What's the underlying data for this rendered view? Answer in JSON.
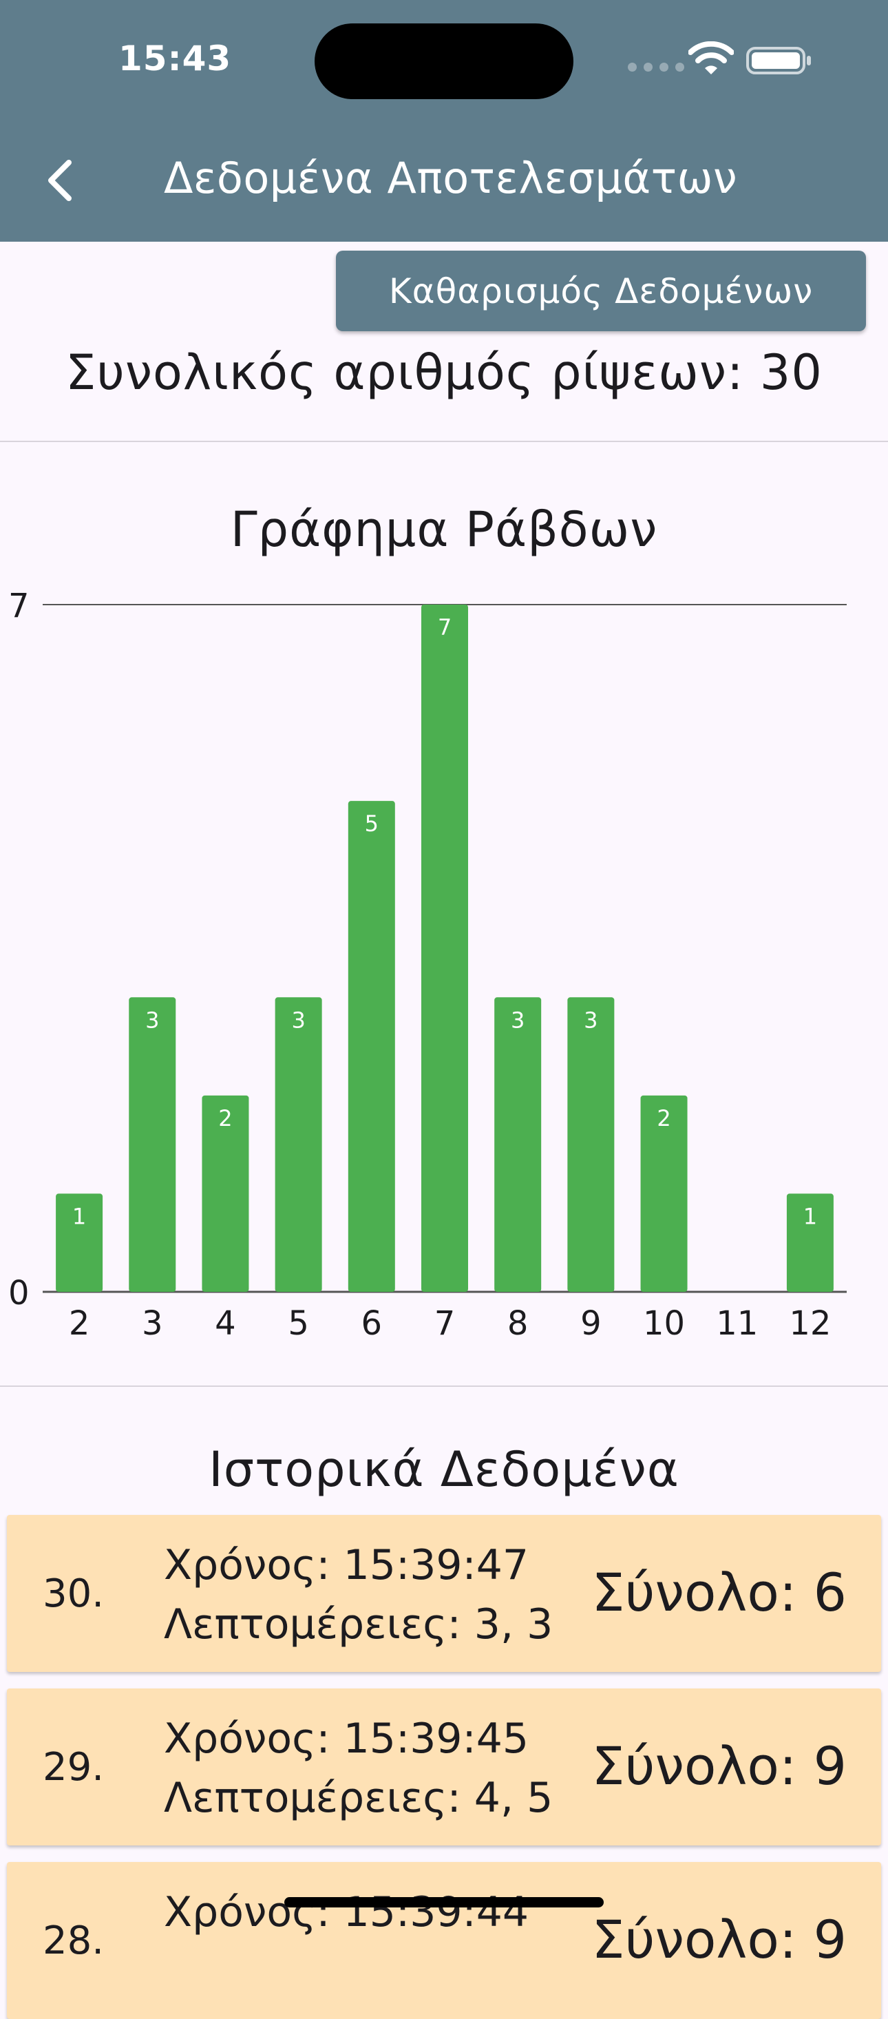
{
  "status_bar": {
    "time": "15:43"
  },
  "header": {
    "title": "Δεδομένα Αποτελεσμάτων"
  },
  "actions": {
    "clear_label": "Καθαρισμός Δεδομένων"
  },
  "summary": {
    "total_label": "Συνολικός αριθμός ρίψεων: 30"
  },
  "chart_title": "Γράφημα Ράβδων",
  "chart_data": {
    "type": "bar",
    "title": "Γράφημα Ράβδων",
    "categories": [
      "2",
      "3",
      "4",
      "5",
      "6",
      "7",
      "8",
      "9",
      "10",
      "11",
      "12"
    ],
    "values": [
      1,
      3,
      2,
      3,
      5,
      7,
      3,
      3,
      2,
      0,
      1
    ],
    "ylim": [
      0,
      7
    ],
    "y_ticks": [
      "0",
      "7"
    ],
    "bar_color": "#4caf50",
    "grid": false
  },
  "history": {
    "title": "Ιστορικά Δεδομένα",
    "items": [
      {
        "index": "30.",
        "time": "Χρόνος: 15:39:47",
        "details": "Λεπτομέρειες: 3, 3",
        "sum": "Σύνολο: 6"
      },
      {
        "index": "29.",
        "time": "Χρόνος: 15:39:45",
        "details": "Λεπτομέρειες: 4, 5",
        "sum": "Σύνολο: 9"
      },
      {
        "index": "28.",
        "time": "Χρόνος: 15:39:44",
        "details": "",
        "sum": "Σύνολο: 9"
      }
    ]
  },
  "colors": {
    "app_bar": "#5f7d8c",
    "card": "#fee1b5",
    "bar": "#4caf50",
    "background": "#fcf7fe"
  }
}
